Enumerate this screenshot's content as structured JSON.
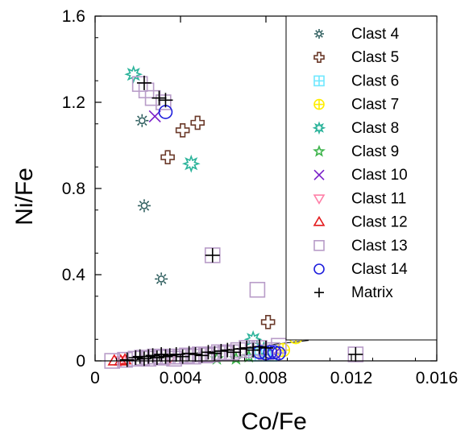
{
  "chart_data": {
    "type": "scatter",
    "xlabel": "Co/Fe",
    "ylabel": "Ni/Fe",
    "xlim": [
      0,
      0.016
    ],
    "ylim": [
      0,
      1.6
    ],
    "x_ticks": [
      "0",
      "0.004",
      "0.008",
      "0.012",
      "0.016"
    ],
    "y_ticks": [
      "0",
      "0.4",
      "0.8",
      "1.2",
      "1.6"
    ],
    "legend_position": "top-right",
    "grid": false,
    "series": [
      {
        "name": "Clast 4",
        "marker": "sun",
        "color": "#2f5f5f",
        "points": [
          [
            0.0022,
            1.115
          ],
          [
            0.0023,
            0.72
          ],
          [
            0.0031,
            0.38
          ]
        ]
      },
      {
        "name": "Clast 5",
        "marker": "cross-open",
        "color": "#6b3a2a",
        "points": [
          [
            0.0034,
            0.945
          ],
          [
            0.0041,
            1.07
          ],
          [
            0.0048,
            1.105
          ],
          [
            0.0081,
            0.18
          ]
        ]
      },
      {
        "name": "Clast 6",
        "marker": "square-plus",
        "color": "#6fe8ff",
        "points": [
          [
            0.0075,
            0.03
          ],
          [
            0.0082,
            0.03
          ]
        ]
      },
      {
        "name": "Clast 7",
        "marker": "circle-plus",
        "color": "#ffee00",
        "points": [
          [
            0.0094,
            0.11
          ],
          [
            0.0088,
            0.05
          ]
        ]
      },
      {
        "name": "Clast 8",
        "marker": "burst",
        "color": "#2bb39a",
        "points": [
          [
            0.0018,
            1.33
          ],
          [
            0.0045,
            0.915
          ],
          [
            0.0074,
            0.1
          ],
          [
            0.0079,
            0.05
          ]
        ]
      },
      {
        "name": "Clast 9",
        "marker": "star",
        "color": "#3cb34a",
        "points": [
          [
            0.0057,
            0.01
          ],
          [
            0.0066,
            0.01
          ],
          [
            0.0072,
            0.02
          ]
        ]
      },
      {
        "name": "Clast 10",
        "marker": "x",
        "color": "#7a1fc9",
        "points": [
          [
            0.0028,
            1.135
          ],
          [
            0.0084,
            0.035
          ]
        ]
      },
      {
        "name": "Clast 11",
        "marker": "triangle-down",
        "color": "#ff80a8",
        "points": [
          [
            0.0012,
            0.0
          ],
          [
            0.0035,
            0.01
          ]
        ]
      },
      {
        "name": "Clast 12",
        "marker": "triangle-up",
        "color": "#e31a1c",
        "points": [
          [
            0.0009,
            0.0
          ],
          [
            0.0012,
            0.0
          ],
          [
            0.0014,
            0.005
          ]
        ]
      },
      {
        "name": "Clast 13",
        "marker": "square",
        "color": "#b89cc8",
        "points": [
          [
            0.0008,
            0.0
          ],
          [
            0.0014,
            0.005
          ],
          [
            0.0019,
            0.01
          ],
          [
            0.0022,
            0.015
          ],
          [
            0.0025,
            0.01
          ],
          [
            0.0028,
            0.02
          ],
          [
            0.0031,
            0.015
          ],
          [
            0.0034,
            0.02
          ],
          [
            0.0037,
            0.01
          ],
          [
            0.004,
            0.02
          ],
          [
            0.0043,
            0.025
          ],
          [
            0.0046,
            0.02
          ],
          [
            0.0049,
            0.03
          ],
          [
            0.0052,
            0.025
          ],
          [
            0.0055,
            0.03
          ],
          [
            0.0058,
            0.04
          ],
          [
            0.0061,
            0.035
          ],
          [
            0.0064,
            0.04
          ],
          [
            0.0067,
            0.05
          ],
          [
            0.0071,
            0.06
          ],
          [
            0.0074,
            0.05
          ],
          [
            0.0077,
            0.06
          ],
          [
            0.008,
            0.04
          ],
          [
            0.0083,
            0.05
          ],
          [
            0.0086,
            0.07
          ],
          [
            0.0122,
            0.03
          ],
          [
            0.0021,
            1.285
          ],
          [
            0.0024,
            1.255
          ],
          [
            0.0027,
            1.22
          ],
          [
            0.0032,
            1.2
          ],
          [
            0.0055,
            0.49
          ],
          [
            0.0076,
            0.33
          ]
        ]
      },
      {
        "name": "Clast 14",
        "marker": "circle",
        "color": "#1f1fdd",
        "points": [
          [
            0.0033,
            1.155
          ],
          [
            0.0077,
            0.04
          ],
          [
            0.008,
            0.035
          ],
          [
            0.0082,
            0.04
          ],
          [
            0.0084,
            0.04
          ],
          [
            0.0086,
            0.035
          ]
        ]
      },
      {
        "name": "Matrix",
        "marker": "plus",
        "color": "#000000",
        "points": [
          [
            0.0015,
            0.005
          ],
          [
            0.0019,
            0.015
          ],
          [
            0.0021,
            0.02
          ],
          [
            0.0023,
            0.01
          ],
          [
            0.0025,
            0.02
          ],
          [
            0.0027,
            0.025
          ],
          [
            0.0029,
            0.015
          ],
          [
            0.0031,
            0.03
          ],
          [
            0.0033,
            0.02
          ],
          [
            0.0035,
            0.025
          ],
          [
            0.0038,
            0.03
          ],
          [
            0.0041,
            0.02
          ],
          [
            0.0044,
            0.035
          ],
          [
            0.0047,
            0.03
          ],
          [
            0.005,
            0.025
          ],
          [
            0.0053,
            0.04
          ],
          [
            0.0056,
            0.035
          ],
          [
            0.0059,
            0.045
          ],
          [
            0.0062,
            0.05
          ],
          [
            0.0065,
            0.04
          ],
          [
            0.0068,
            0.055
          ],
          [
            0.0071,
            0.06
          ],
          [
            0.0074,
            0.05
          ],
          [
            0.0077,
            0.065
          ],
          [
            0.008,
            0.06
          ],
          [
            0.0122,
            0.03
          ],
          [
            0.0023,
            1.29
          ],
          [
            0.003,
            1.22
          ],
          [
            0.0033,
            1.21
          ],
          [
            0.0055,
            0.49
          ]
        ]
      }
    ],
    "trend_line": {
      "x": [
        0.0015,
        0.01
      ],
      "y": [
        0.0,
        0.095
      ]
    }
  }
}
